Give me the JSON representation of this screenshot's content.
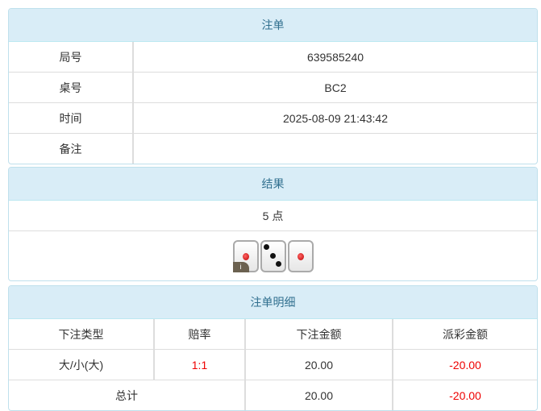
{
  "order": {
    "title": "注单",
    "rows": [
      {
        "label": "局号",
        "value": "639585240"
      },
      {
        "label": "桌号",
        "value": "BC2"
      },
      {
        "label": "时间",
        "value": "2025-08-09 21:43:42"
      },
      {
        "label": "备注",
        "value": ""
      }
    ]
  },
  "result": {
    "title": "结果",
    "points": "5 点",
    "dice": [
      1,
      3,
      1
    ],
    "info_badge": "i"
  },
  "detail": {
    "title": "注单明细",
    "headers": [
      "下注类型",
      "赔率",
      "下注金额",
      "派彩金额"
    ],
    "rows": [
      {
        "type": "大/小(大)",
        "odds": "1:1",
        "bet": "20.00",
        "payout": "-20.00"
      }
    ],
    "total": {
      "label": "总计",
      "bet": "20.00",
      "payout": "-20.00"
    }
  },
  "colors": {
    "header_bg": "#d9edf7",
    "header_text": "#31708f",
    "negative": "#ee0000"
  }
}
